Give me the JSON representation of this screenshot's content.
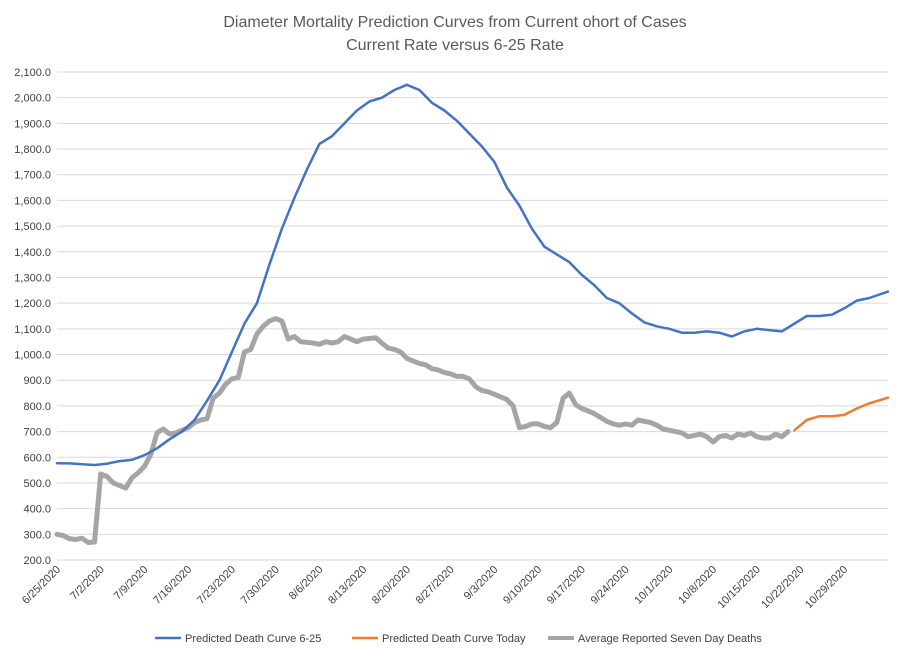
{
  "chart_data": {
    "type": "line",
    "title": "Diameter Mortality Prediction Curves from Current ohort of Cases",
    "subtitle": "Current Rate versus 6-25 Rate",
    "ylim": [
      200,
      2100
    ],
    "yticks": [
      200,
      300,
      400,
      500,
      600,
      700,
      800,
      900,
      1000,
      1100,
      1200,
      1300,
      1400,
      1500,
      1600,
      1700,
      1800,
      1900,
      2000,
      2100
    ],
    "ytick_labels": [
      "200.0",
      "300.0",
      "400.0",
      "500.0",
      "600.0",
      "700.0",
      "800.0",
      "900.0",
      "1,000.0",
      "1,100.0",
      "1,200.0",
      "1,300.0",
      "1,400.0",
      "1,500.0",
      "1,600.0",
      "1,700.0",
      "1,800.0",
      "1,900.0",
      "2,000.0",
      "2,100.0"
    ],
    "xlim": [
      "6/25/2020",
      "11/5/2020"
    ],
    "xtick_labels": [
      "6/25/2020",
      "7/2/2020",
      "7/9/2020",
      "7/16/2020",
      "7/23/2020",
      "7/30/2020",
      "8/6/2020",
      "8/13/2020",
      "8/20/2020",
      "8/27/2020",
      "9/3/2020",
      "9/10/2020",
      "9/17/2020",
      "9/24/2020",
      "10/1/2020",
      "10/8/2020",
      "10/15/2020",
      "10/22/2020",
      "10/29/2020"
    ],
    "grid": "horizontal",
    "legend_position": "bottom",
    "series": [
      {
        "name": "Predicted Death Curve 6-25",
        "color": "#4472c4",
        "points": [
          [
            "6/25/2020",
            577
          ],
          [
            "6/27/2020",
            576
          ],
          [
            "6/29/2020",
            573
          ],
          [
            "7/1/2020",
            570
          ],
          [
            "7/3/2020",
            575
          ],
          [
            "7/5/2020",
            585
          ],
          [
            "7/7/2020",
            590
          ],
          [
            "7/9/2020",
            608
          ],
          [
            "7/11/2020",
            635
          ],
          [
            "7/13/2020",
            670
          ],
          [
            "7/15/2020",
            700
          ],
          [
            "7/17/2020",
            745
          ],
          [
            "7/19/2020",
            820
          ],
          [
            "7/21/2020",
            900
          ],
          [
            "7/23/2020",
            1010
          ],
          [
            "7/25/2020",
            1120
          ],
          [
            "7/27/2020",
            1200
          ],
          [
            "7/29/2020",
            1350
          ],
          [
            "7/31/2020",
            1490
          ],
          [
            "8/2/2020",
            1610
          ],
          [
            "8/4/2020",
            1720
          ],
          [
            "8/6/2020",
            1820
          ],
          [
            "8/8/2020",
            1850
          ],
          [
            "8/10/2020",
            1900
          ],
          [
            "8/12/2020",
            1950
          ],
          [
            "8/14/2020",
            1985
          ],
          [
            "8/16/2020",
            2000
          ],
          [
            "8/18/2020",
            2030
          ],
          [
            "8/20/2020",
            2050
          ],
          [
            "8/22/2020",
            2030
          ],
          [
            "8/24/2020",
            1980
          ],
          [
            "8/26/2020",
            1950
          ],
          [
            "8/28/2020",
            1910
          ],
          [
            "8/30/2020",
            1860
          ],
          [
            "9/1/2020",
            1810
          ],
          [
            "9/3/2020",
            1750
          ],
          [
            "9/5/2020",
            1650
          ],
          [
            "9/7/2020",
            1580
          ],
          [
            "9/9/2020",
            1490
          ],
          [
            "9/11/2020",
            1420
          ],
          [
            "9/13/2020",
            1390
          ],
          [
            "9/15/2020",
            1360
          ],
          [
            "9/17/2020",
            1310
          ],
          [
            "9/19/2020",
            1270
          ],
          [
            "9/21/2020",
            1220
          ],
          [
            "9/23/2020",
            1200
          ],
          [
            "9/25/2020",
            1160
          ],
          [
            "9/27/2020",
            1125
          ],
          [
            "9/29/2020",
            1110
          ],
          [
            "10/1/2020",
            1100
          ],
          [
            "10/3/2020",
            1085
          ],
          [
            "10/5/2020",
            1085
          ],
          [
            "10/7/2020",
            1090
          ],
          [
            "10/9/2020",
            1085
          ],
          [
            "10/11/2020",
            1070
          ],
          [
            "10/13/2020",
            1090
          ],
          [
            "10/15/2020",
            1100
          ],
          [
            "10/17/2020",
            1095
          ],
          [
            "10/19/2020",
            1090
          ],
          [
            "10/21/2020",
            1120
          ],
          [
            "10/23/2020",
            1150
          ],
          [
            "10/25/2020",
            1150
          ],
          [
            "10/27/2020",
            1155
          ],
          [
            "10/29/2020",
            1180
          ],
          [
            "10/31/2020",
            1210
          ],
          [
            "11/2/2020",
            1220
          ],
          [
            "11/5/2020",
            1245
          ]
        ]
      },
      {
        "name": "Predicted Death Curve Today",
        "color": "#ed7d31",
        "points": [
          [
            "10/21/2020",
            705
          ],
          [
            "10/23/2020",
            745
          ],
          [
            "10/25/2020",
            760
          ],
          [
            "10/27/2020",
            760
          ],
          [
            "10/29/2020",
            765
          ],
          [
            "10/31/2020",
            790
          ],
          [
            "11/2/2020",
            810
          ],
          [
            "11/5/2020",
            832
          ]
        ]
      },
      {
        "name": "Average Reported Seven Day Deaths",
        "color": "#a5a5a5",
        "points": [
          [
            "6/25/2020",
            300
          ],
          [
            "6/26/2020",
            295
          ],
          [
            "6/27/2020",
            283
          ],
          [
            "6/28/2020",
            280
          ],
          [
            "6/29/2020",
            285
          ],
          [
            "6/30/2020",
            268
          ],
          [
            "7/1/2020",
            270
          ],
          [
            "7/2/2020",
            535
          ],
          [
            "7/3/2020",
            525
          ],
          [
            "7/4/2020",
            500
          ],
          [
            "7/5/2020",
            490
          ],
          [
            "7/6/2020",
            480
          ],
          [
            "7/7/2020",
            520
          ],
          [
            "7/8/2020",
            540
          ],
          [
            "7/9/2020",
            565
          ],
          [
            "7/10/2020",
            610
          ],
          [
            "7/11/2020",
            695
          ],
          [
            "7/12/2020",
            710
          ],
          [
            "7/13/2020",
            690
          ],
          [
            "7/14/2020",
            695
          ],
          [
            "7/15/2020",
            705
          ],
          [
            "7/16/2020",
            715
          ],
          [
            "7/17/2020",
            735
          ],
          [
            "7/18/2020",
            745
          ],
          [
            "7/19/2020",
            750
          ],
          [
            "7/20/2020",
            830
          ],
          [
            "7/21/2020",
            850
          ],
          [
            "7/22/2020",
            885
          ],
          [
            "7/23/2020",
            905
          ],
          [
            "7/24/2020",
            910
          ],
          [
            "7/25/2020",
            1010
          ],
          [
            "7/26/2020",
            1020
          ],
          [
            "7/27/2020",
            1080
          ],
          [
            "7/28/2020",
            1110
          ],
          [
            "7/29/2020",
            1130
          ],
          [
            "7/30/2020",
            1140
          ],
          [
            "7/31/2020",
            1130
          ],
          [
            "8/1/2020",
            1060
          ],
          [
            "8/2/2020",
            1070
          ],
          [
            "8/3/2020",
            1050
          ],
          [
            "8/5/2020",
            1045
          ],
          [
            "8/6/2020",
            1040
          ],
          [
            "8/7/2020",
            1050
          ],
          [
            "8/8/2020",
            1045
          ],
          [
            "8/9/2020",
            1050
          ],
          [
            "8/10/2020",
            1070
          ],
          [
            "8/11/2020",
            1060
          ],
          [
            "8/12/2020",
            1050
          ],
          [
            "8/13/2020",
            1060
          ],
          [
            "8/15/2020",
            1065
          ],
          [
            "8/16/2020",
            1045
          ],
          [
            "8/17/2020",
            1025
          ],
          [
            "8/18/2020",
            1020
          ],
          [
            "8/19/2020",
            1010
          ],
          [
            "8/20/2020",
            985
          ],
          [
            "8/21/2020",
            975
          ],
          [
            "8/22/2020",
            965
          ],
          [
            "8/23/2020",
            960
          ],
          [
            "8/24/2020",
            945
          ],
          [
            "8/25/2020",
            940
          ],
          [
            "8/26/2020",
            930
          ],
          [
            "8/27/2020",
            925
          ],
          [
            "8/28/2020",
            915
          ],
          [
            "8/29/2020",
            915
          ],
          [
            "8/30/2020",
            905
          ],
          [
            "8/31/2020",
            875
          ],
          [
            "9/1/2020",
            860
          ],
          [
            "9/2/2020",
            855
          ],
          [
            "9/3/2020",
            845
          ],
          [
            "9/4/2020",
            835
          ],
          [
            "9/5/2020",
            825
          ],
          [
            "9/6/2020",
            800
          ],
          [
            "9/7/2020",
            715
          ],
          [
            "9/8/2020",
            720
          ],
          [
            "9/9/2020",
            730
          ],
          [
            "9/10/2020",
            730
          ],
          [
            "9/11/2020",
            720
          ],
          [
            "9/12/2020",
            715
          ],
          [
            "9/13/2020",
            735
          ],
          [
            "9/14/2020",
            830
          ],
          [
            "9/15/2020",
            850
          ],
          [
            "9/16/2020",
            805
          ],
          [
            "9/17/2020",
            790
          ],
          [
            "9/18/2020",
            780
          ],
          [
            "9/19/2020",
            770
          ],
          [
            "9/20/2020",
            755
          ],
          [
            "9/21/2020",
            740
          ],
          [
            "9/22/2020",
            730
          ],
          [
            "9/23/2020",
            725
          ],
          [
            "9/24/2020",
            730
          ],
          [
            "9/25/2020",
            725
          ],
          [
            "9/26/2020",
            745
          ],
          [
            "9/27/2020",
            740
          ],
          [
            "9/28/2020",
            735
          ],
          [
            "9/29/2020",
            725
          ],
          [
            "9/30/2020",
            710
          ],
          [
            "10/1/2020",
            705
          ],
          [
            "10/2/2020",
            700
          ],
          [
            "10/3/2020",
            695
          ],
          [
            "10/4/2020",
            680
          ],
          [
            "10/5/2020",
            685
          ],
          [
            "10/6/2020",
            690
          ],
          [
            "10/7/2020",
            680
          ],
          [
            "10/8/2020",
            660
          ],
          [
            "10/9/2020",
            680
          ],
          [
            "10/10/2020",
            685
          ],
          [
            "10/11/2020",
            675
          ],
          [
            "10/12/2020",
            690
          ],
          [
            "10/13/2020",
            685
          ],
          [
            "10/14/2020",
            695
          ],
          [
            "10/15/2020",
            680
          ],
          [
            "10/16/2020",
            675
          ],
          [
            "10/17/2020",
            675
          ],
          [
            "10/18/2020",
            690
          ],
          [
            "10/19/2020",
            680
          ],
          [
            "10/20/2020",
            700
          ]
        ]
      }
    ]
  }
}
